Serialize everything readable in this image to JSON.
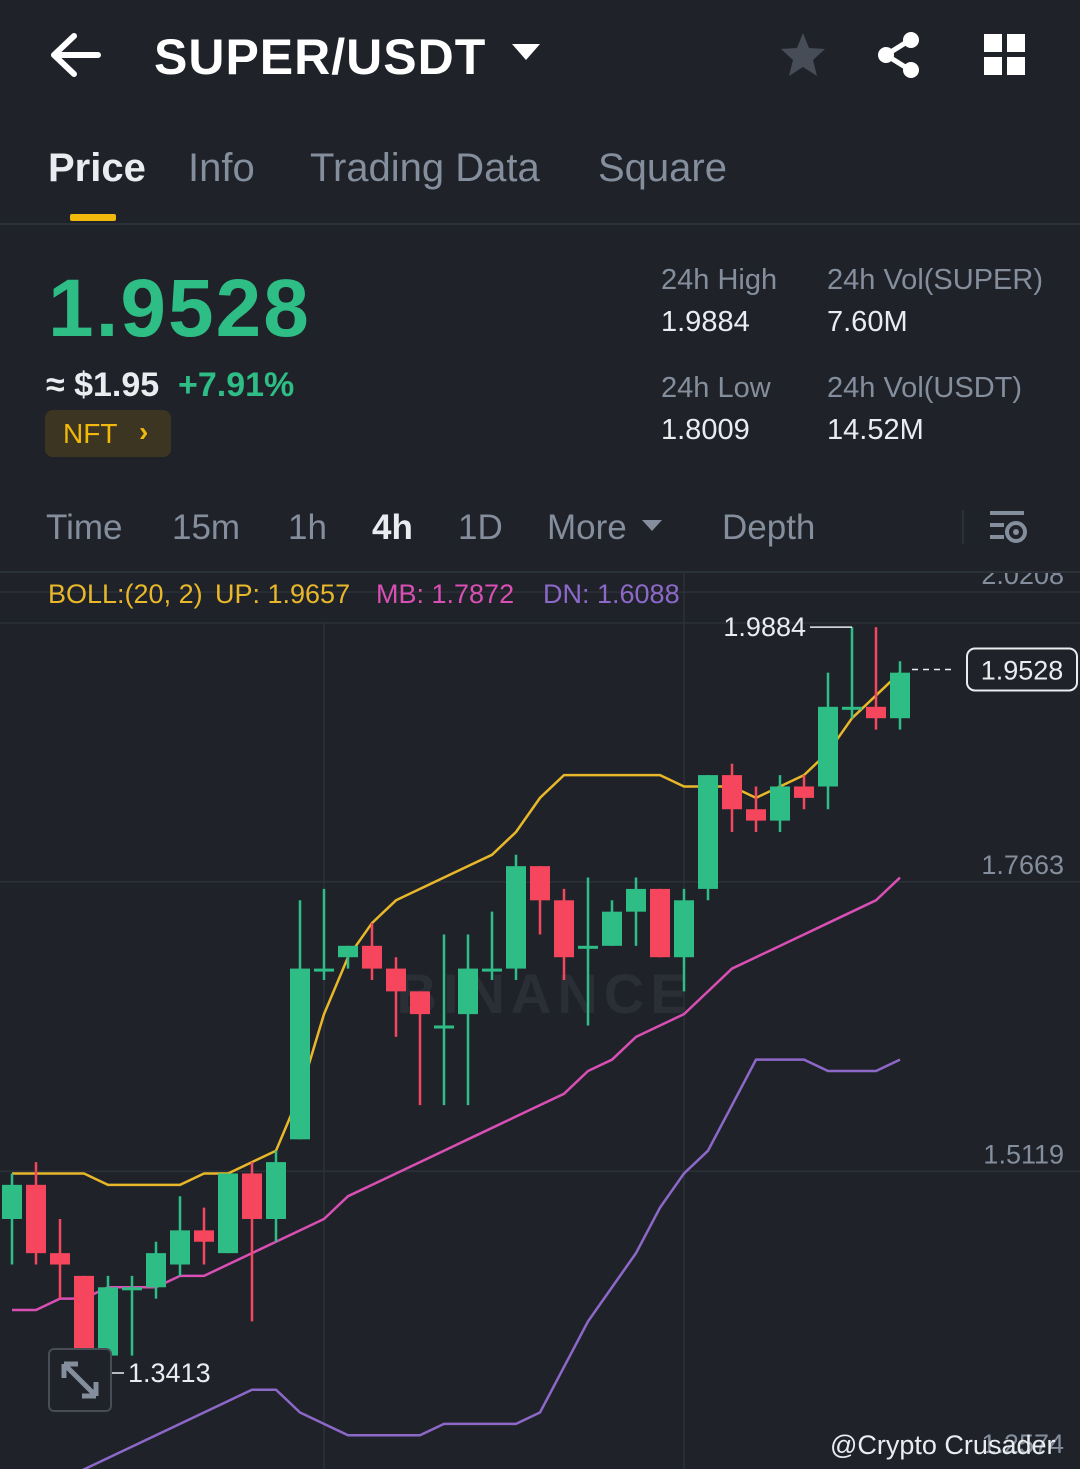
{
  "header": {
    "pair": "SUPER/USDT",
    "icons": [
      "back-arrow-icon",
      "dropdown-caret-icon",
      "star-icon",
      "share-icon",
      "grid-menu-icon"
    ]
  },
  "tabs": [
    {
      "label": "Price",
      "active": true
    },
    {
      "label": "Info",
      "active": false
    },
    {
      "label": "Trading Data",
      "active": false
    },
    {
      "label": "Square",
      "active": false
    }
  ],
  "ticker": {
    "last_price": "1.9528",
    "fiat": "≈ $1.95",
    "change": "+7.91%",
    "tag": "NFT",
    "tag_chevron": "›",
    "high_label": "24h High",
    "high": "1.9884",
    "low_label": "24h Low",
    "low": "1.8009",
    "vol_base_label": "24h Vol(SUPER)",
    "vol_base": "7.60M",
    "vol_quote_label": "24h Vol(USDT)",
    "vol_quote": "14.52M"
  },
  "timeframes": [
    {
      "label": "Time",
      "active": false
    },
    {
      "label": "15m",
      "active": false
    },
    {
      "label": "1h",
      "active": false
    },
    {
      "label": "4h",
      "active": true
    },
    {
      "label": "1D",
      "active": false
    },
    {
      "label": "More",
      "active": false
    },
    {
      "label": "Depth",
      "active": false
    }
  ],
  "indicator": {
    "boll": "BOLL:(20, 2)",
    "up": "UP: 1.9657",
    "mb": "MB: 1.7872",
    "dn": "DN: 1.6088"
  },
  "colors": {
    "up": "#2ebd85",
    "down": "#f6465d",
    "accent": "#f0b90b",
    "boll_up": "#e8b72a",
    "boll_mb": "#d94fb4",
    "boll_dn": "#8d68c9",
    "background": "#1f2329"
  },
  "chart_data": {
    "type": "candlestick",
    "interval": "4h",
    "ylim": [
      1.26,
      2.02
    ],
    "y_ticks": [
      2.0208,
      1.7663,
      1.5119
    ],
    "current_price": 1.9528,
    "annotations": {
      "high": "1.9884",
      "low": "1.3413",
      "last": "1.9528",
      "bottom_tick_partial": "1.2574"
    },
    "candles": [
      {
        "o": 1.47,
        "c": 1.5,
        "h": 1.51,
        "l": 1.43
      },
      {
        "o": 1.5,
        "c": 1.44,
        "h": 1.52,
        "l": 1.43
      },
      {
        "o": 1.44,
        "c": 1.43,
        "h": 1.47,
        "l": 1.4
      },
      {
        "o": 1.42,
        "c": 1.35,
        "h": 1.42,
        "l": 1.34
      },
      {
        "o": 1.35,
        "c": 1.41,
        "h": 1.42,
        "l": 1.34
      },
      {
        "o": 1.41,
        "c": 1.41,
        "h": 1.42,
        "l": 1.35
      },
      {
        "o": 1.41,
        "c": 1.44,
        "h": 1.45,
        "l": 1.4
      },
      {
        "o": 1.43,
        "c": 1.46,
        "h": 1.49,
        "l": 1.42
      },
      {
        "o": 1.46,
        "c": 1.45,
        "h": 1.48,
        "l": 1.43
      },
      {
        "o": 1.44,
        "c": 1.51,
        "h": 1.51,
        "l": 1.44
      },
      {
        "o": 1.51,
        "c": 1.47,
        "h": 1.52,
        "l": 1.38
      },
      {
        "o": 1.47,
        "c": 1.52,
        "h": 1.53,
        "l": 1.45
      },
      {
        "o": 1.54,
        "c": 1.69,
        "h": 1.75,
        "l": 1.54
      },
      {
        "o": 1.69,
        "c": 1.69,
        "h": 1.76,
        "l": 1.68
      },
      {
        "o": 1.7,
        "c": 1.71,
        "h": 1.71,
        "l": 1.69
      },
      {
        "o": 1.71,
        "c": 1.69,
        "h": 1.73,
        "l": 1.68
      },
      {
        "o": 1.69,
        "c": 1.67,
        "h": 1.7,
        "l": 1.63
      },
      {
        "o": 1.67,
        "c": 1.65,
        "h": 1.67,
        "l": 1.57
      },
      {
        "o": 1.64,
        "c": 1.64,
        "h": 1.72,
        "l": 1.57
      },
      {
        "o": 1.65,
        "c": 1.69,
        "h": 1.72,
        "l": 1.57
      },
      {
        "o": 1.69,
        "c": 1.69,
        "h": 1.74,
        "l": 1.68
      },
      {
        "o": 1.69,
        "c": 1.78,
        "h": 1.79,
        "l": 1.68
      },
      {
        "o": 1.78,
        "c": 1.75,
        "h": 1.78,
        "l": 1.72
      },
      {
        "o": 1.75,
        "c": 1.7,
        "h": 1.76,
        "l": 1.68
      },
      {
        "o": 1.71,
        "c": 1.71,
        "h": 1.77,
        "l": 1.64
      },
      {
        "o": 1.71,
        "c": 1.74,
        "h": 1.75,
        "l": 1.71
      },
      {
        "o": 1.74,
        "c": 1.76,
        "h": 1.77,
        "l": 1.71
      },
      {
        "o": 1.76,
        "c": 1.7,
        "h": 1.76,
        "l": 1.7
      },
      {
        "o": 1.7,
        "c": 1.75,
        "h": 1.76,
        "l": 1.67
      },
      {
        "o": 1.76,
        "c": 1.86,
        "h": 1.86,
        "l": 1.75
      },
      {
        "o": 1.86,
        "c": 1.83,
        "h": 1.87,
        "l": 1.81
      },
      {
        "o": 1.83,
        "c": 1.82,
        "h": 1.85,
        "l": 1.81
      },
      {
        "o": 1.82,
        "c": 1.85,
        "h": 1.86,
        "l": 1.81
      },
      {
        "o": 1.85,
        "c": 1.84,
        "h": 1.86,
        "l": 1.83
      },
      {
        "o": 1.85,
        "c": 1.92,
        "h": 1.95,
        "l": 1.83
      },
      {
        "o": 1.92,
        "c": 1.92,
        "h": 1.99,
        "l": 1.91
      },
      {
        "o": 1.92,
        "c": 1.91,
        "h": 1.99,
        "l": 1.9
      },
      {
        "o": 1.91,
        "c": 1.95,
        "h": 1.96,
        "l": 1.9
      }
    ],
    "boll_up": [
      1.51,
      1.51,
      1.51,
      1.51,
      1.5,
      1.5,
      1.5,
      1.5,
      1.51,
      1.51,
      1.52,
      1.53,
      1.58,
      1.65,
      1.7,
      1.73,
      1.75,
      1.76,
      1.77,
      1.78,
      1.79,
      1.81,
      1.84,
      1.86,
      1.86,
      1.86,
      1.86,
      1.86,
      1.85,
      1.85,
      1.85,
      1.84,
      1.85,
      1.86,
      1.88,
      1.91,
      1.93,
      1.95
    ],
    "boll_mb": [
      1.39,
      1.39,
      1.4,
      1.4,
      1.41,
      1.41,
      1.41,
      1.42,
      1.42,
      1.43,
      1.44,
      1.45,
      1.46,
      1.47,
      1.49,
      1.5,
      1.51,
      1.52,
      1.53,
      1.54,
      1.55,
      1.56,
      1.57,
      1.58,
      1.6,
      1.61,
      1.63,
      1.64,
      1.65,
      1.67,
      1.69,
      1.7,
      1.71,
      1.72,
      1.73,
      1.74,
      1.75,
      1.77
    ],
    "boll_dn": [
      1.22,
      1.23,
      1.24,
      1.25,
      1.26,
      1.27,
      1.28,
      1.29,
      1.3,
      1.31,
      1.32,
      1.32,
      1.3,
      1.29,
      1.28,
      1.28,
      1.28,
      1.28,
      1.29,
      1.29,
      1.29,
      1.29,
      1.3,
      1.34,
      1.38,
      1.41,
      1.44,
      1.48,
      1.51,
      1.53,
      1.57,
      1.61,
      1.61,
      1.61,
      1.6,
      1.6,
      1.6,
      1.61
    ]
  },
  "watermark": "@Crypto Crusader",
  "background_logo": "BINANCE"
}
